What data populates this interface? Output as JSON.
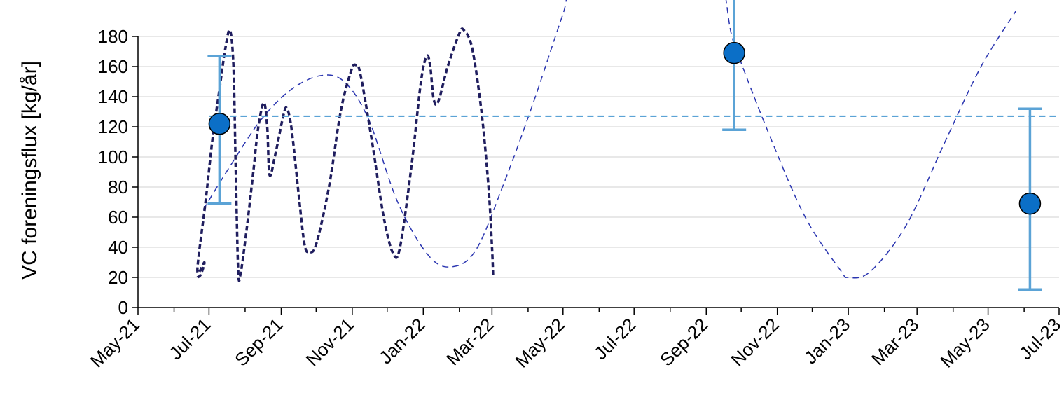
{
  "chart_data": {
    "type": "scatter",
    "title": "",
    "xlabel": "",
    "ylabel": "VC foreningsflux [kg/år]",
    "ylim": [
      0,
      180
    ],
    "ytick_step": 20,
    "xlim": [
      "2021-05-01",
      "2023-07-01"
    ],
    "x_ticks": [
      {
        "date": "2021-05-01",
        "label": "May-21"
      },
      {
        "date": "2021-07-01",
        "label": "Jul-21"
      },
      {
        "date": "2021-09-01",
        "label": "Sep-21"
      },
      {
        "date": "2021-11-01",
        "label": "Nov-21"
      },
      {
        "date": "2022-01-01",
        "label": "Jan-22"
      },
      {
        "date": "2022-03-01",
        "label": "Mar-22"
      },
      {
        "date": "2022-05-01",
        "label": "May-22"
      },
      {
        "date": "2022-07-01",
        "label": "Jul-22"
      },
      {
        "date": "2022-09-01",
        "label": "Sep-22"
      },
      {
        "date": "2022-11-01",
        "label": "Nov-22"
      },
      {
        "date": "2023-01-01",
        "label": "Jan-23"
      },
      {
        "date": "2023-03-01",
        "label": "Mar-23"
      },
      {
        "date": "2023-05-01",
        "label": "May-23"
      },
      {
        "date": "2023-07-01",
        "label": "Jul-23"
      }
    ],
    "grid": true,
    "legend": "none",
    "colors": {
      "points": "#0b6fc7",
      "error_bars": "#5ba3d6",
      "mean_line": "#5ba3d6",
      "measured_curve": "#1f1d5e",
      "fitted_curve": "#2a35b0"
    },
    "points": [
      {
        "x": "2021-07-10",
        "y": 122,
        "ymin": 69,
        "ymax": 167
      },
      {
        "x": "2022-09-25",
        "y": 169,
        "ymin": 118,
        "ymax": 230
      },
      {
        "x": "2023-06-06",
        "y": 69,
        "ymin": 12,
        "ymax": 132
      }
    ],
    "mean_line": {
      "y": 127,
      "x_start": "2021-07-01",
      "x_end": "2023-07-01"
    },
    "measured_curve": [
      {
        "x": "2021-06-21",
        "y": 20
      },
      {
        "x": "2021-06-24",
        "y": 22
      },
      {
        "x": "2021-06-27",
        "y": 30
      },
      {
        "x": "2021-06-21",
        "y": 25
      },
      {
        "x": "2021-06-28",
        "y": 70
      },
      {
        "x": "2021-07-04",
        "y": 112
      },
      {
        "x": "2021-07-10",
        "y": 145
      },
      {
        "x": "2021-07-15",
        "y": 172
      },
      {
        "x": "2021-07-19",
        "y": 184
      },
      {
        "x": "2021-07-22",
        "y": 160
      },
      {
        "x": "2021-07-24",
        "y": 90
      },
      {
        "x": "2021-07-26",
        "y": 25
      },
      {
        "x": "2021-07-28",
        "y": 22
      },
      {
        "x": "2021-08-02",
        "y": 50
      },
      {
        "x": "2021-08-08",
        "y": 90
      },
      {
        "x": "2021-08-12",
        "y": 118
      },
      {
        "x": "2021-08-17",
        "y": 136
      },
      {
        "x": "2021-08-20",
        "y": 120
      },
      {
        "x": "2021-08-22",
        "y": 88
      },
      {
        "x": "2021-08-27",
        "y": 102
      },
      {
        "x": "2021-09-03",
        "y": 128
      },
      {
        "x": "2021-09-06",
        "y": 132
      },
      {
        "x": "2021-09-10",
        "y": 118
      },
      {
        "x": "2021-09-16",
        "y": 75
      },
      {
        "x": "2021-09-21",
        "y": 42
      },
      {
        "x": "2021-09-25",
        "y": 37
      },
      {
        "x": "2021-10-01",
        "y": 42
      },
      {
        "x": "2021-10-12",
        "y": 80
      },
      {
        "x": "2021-10-22",
        "y": 130
      },
      {
        "x": "2021-10-31",
        "y": 157
      },
      {
        "x": "2021-11-04",
        "y": 161
      },
      {
        "x": "2021-11-08",
        "y": 155
      },
      {
        "x": "2021-11-18",
        "y": 110
      },
      {
        "x": "2021-11-28",
        "y": 60
      },
      {
        "x": "2021-12-06",
        "y": 36
      },
      {
        "x": "2021-12-12",
        "y": 40
      },
      {
        "x": "2021-12-22",
        "y": 95
      },
      {
        "x": "2021-12-30",
        "y": 150
      },
      {
        "x": "2022-01-04",
        "y": 167
      },
      {
        "x": "2022-01-07",
        "y": 160
      },
      {
        "x": "2022-01-10",
        "y": 138
      },
      {
        "x": "2022-01-14",
        "y": 137
      },
      {
        "x": "2022-01-22",
        "y": 160
      },
      {
        "x": "2022-02-01",
        "y": 182
      },
      {
        "x": "2022-02-05",
        "y": 184
      },
      {
        "x": "2022-02-12",
        "y": 172
      },
      {
        "x": "2022-02-20",
        "y": 130
      },
      {
        "x": "2022-02-26",
        "y": 80
      },
      {
        "x": "2022-03-01",
        "y": 40
      },
      {
        "x": "2022-03-02",
        "y": 20
      }
    ],
    "fitted_curve": [
      {
        "x": "2021-06-26",
        "y": 65
      },
      {
        "x": "2021-07-20",
        "y": 95
      },
      {
        "x": "2021-08-15",
        "y": 125
      },
      {
        "x": "2021-09-10",
        "y": 145
      },
      {
        "x": "2021-10-05",
        "y": 154
      },
      {
        "x": "2021-10-25",
        "y": 150
      },
      {
        "x": "2021-11-15",
        "y": 125
      },
      {
        "x": "2021-12-10",
        "y": 70
      },
      {
        "x": "2022-01-05",
        "y": 35
      },
      {
        "x": "2022-01-25",
        "y": 27
      },
      {
        "x": "2022-02-15",
        "y": 38
      },
      {
        "x": "2022-03-10",
        "y": 80
      },
      {
        "x": "2022-04-05",
        "y": 135
      },
      {
        "x": "2022-05-01",
        "y": 195
      },
      {
        "x": "2022-05-20",
        "y": 235
      },
      {
        "x": "2022-09-01",
        "y": 230
      },
      {
        "x": "2022-09-25",
        "y": 175
      },
      {
        "x": "2022-10-25",
        "y": 115
      },
      {
        "x": "2022-11-25",
        "y": 60
      },
      {
        "x": "2022-12-25",
        "y": 25
      },
      {
        "x": "2023-01-01",
        "y": 20
      },
      {
        "x": "2023-01-20",
        "y": 24
      },
      {
        "x": "2023-02-20",
        "y": 55
      },
      {
        "x": "2023-03-25",
        "y": 110
      },
      {
        "x": "2023-04-25",
        "y": 160
      },
      {
        "x": "2023-05-25",
        "y": 197
      }
    ]
  }
}
